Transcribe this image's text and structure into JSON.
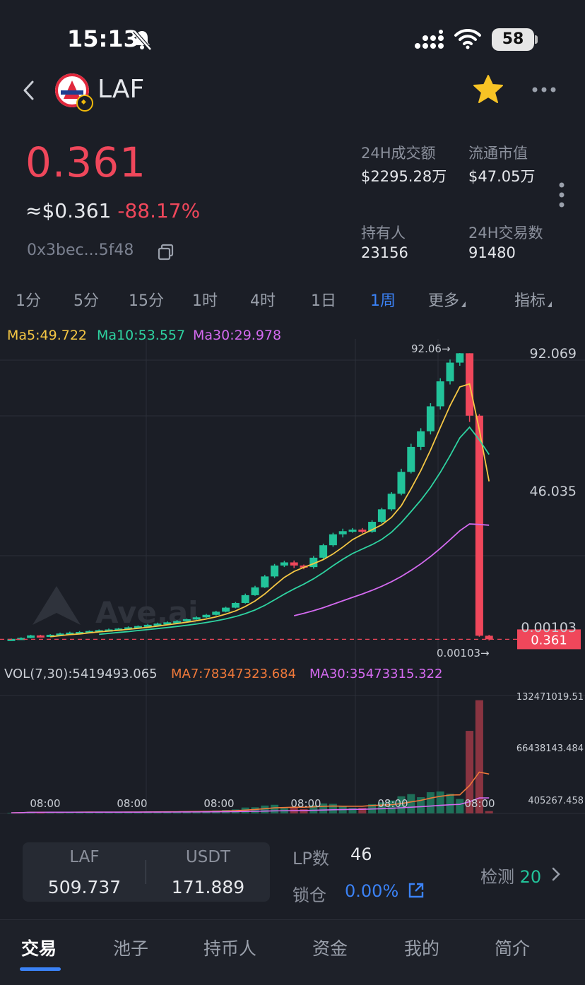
{
  "status_bar": {
    "time": "15:13",
    "battery": "58"
  },
  "header": {
    "token_name": "LAF"
  },
  "price": {
    "value": "0.361",
    "usd": "≈$0.361",
    "change": "-88.17%",
    "address": "0x3bec...5f48"
  },
  "stats": [
    {
      "label": "24H成交额",
      "value": "$2295.28万"
    },
    {
      "label": "流通市值",
      "value": "$47.05万"
    },
    {
      "label": "持有人",
      "value": "23156"
    },
    {
      "label": "24H交易数",
      "value": "91480"
    }
  ],
  "timeframes": [
    "1分",
    "5分",
    "15分",
    "1时",
    "4时",
    "1日",
    "1周",
    "更多",
    "指标"
  ],
  "active_timeframe": "1周",
  "ma_labels": {
    "ma5": "Ma5:49.722",
    "ma10": "Ma10:53.557",
    "ma30": "Ma30:29.978"
  },
  "vol_labels": {
    "vol": "VOL(7,30):5419493.065",
    "ma7": "MA7:78347323.684",
    "ma30": "MA30:35473315.322"
  },
  "chart_data": {
    "type": "candlestick",
    "price_axis_labels": [
      "92.069",
      "46.035",
      "0.00103"
    ],
    "current_price_tag": "0.361",
    "high_marker": "92.06→",
    "low_marker": "0.00103→",
    "watermark": "Ave.ai",
    "candles": [
      [
        0.3,
        0.5,
        0.2,
        0.6
      ],
      [
        0.5,
        0.8,
        0.4,
        1.0
      ],
      [
        0.8,
        1.6,
        0.7,
        1.8
      ],
      [
        1.6,
        1.2,
        1.0,
        1.8
      ],
      [
        1.2,
        1.8,
        1.1,
        2.0
      ],
      [
        1.8,
        2.2,
        1.7,
        2.5
      ],
      [
        2.2,
        2.5,
        2.0,
        2.8
      ],
      [
        2.5,
        2.7,
        2.3,
        3.0
      ],
      [
        2.7,
        3.0,
        2.5,
        3.2
      ],
      [
        3.0,
        3.3,
        2.8,
        3.5
      ],
      [
        3.3,
        3.5,
        3.1,
        3.8
      ],
      [
        3.5,
        3.8,
        3.3,
        4.0
      ],
      [
        3.8,
        4.2,
        3.6,
        4.5
      ],
      [
        4.2,
        4.6,
        4.0,
        4.8
      ],
      [
        4.6,
        5.0,
        4.4,
        5.3
      ],
      [
        5.0,
        5.4,
        4.8,
        5.7
      ],
      [
        5.4,
        5.8,
        5.2,
        6.1
      ],
      [
        5.8,
        6.2,
        5.6,
        6.5
      ],
      [
        6.2,
        6.8,
        6.0,
        7.0
      ],
      [
        6.8,
        7.4,
        6.6,
        7.7
      ],
      [
        7.4,
        8.2,
        7.2,
        8.5
      ],
      [
        8.2,
        9.2,
        8.0,
        9.5
      ],
      [
        9.2,
        10.5,
        9.0,
        10.8
      ],
      [
        10.5,
        12.0,
        10.3,
        12.3
      ],
      [
        12.0,
        14.5,
        11.8,
        15.0
      ],
      [
        14.5,
        17.0,
        14.3,
        17.5
      ],
      [
        17.0,
        20.5,
        16.8,
        21.0
      ],
      [
        20.5,
        24.0,
        20.0,
        24.5
      ],
      [
        24.0,
        25.0,
        23.5,
        25.5
      ],
      [
        25.0,
        24.0,
        23.2,
        25.6
      ],
      [
        24.0,
        23.5,
        22.8,
        24.3
      ],
      [
        23.5,
        26.5,
        23.0,
        27.0
      ],
      [
        26.5,
        30.5,
        26.0,
        31.0
      ],
      [
        30.5,
        34.0,
        30.0,
        34.5
      ],
      [
        34.0,
        35.0,
        33.0,
        35.8
      ],
      [
        35.0,
        35.5,
        34.5,
        36.0
      ],
      [
        35.5,
        34.8,
        34.3,
        36.0
      ],
      [
        34.8,
        38.0,
        34.5,
        38.5
      ],
      [
        38.0,
        42.0,
        37.5,
        42.5
      ],
      [
        42.0,
        47.0,
        41.5,
        47.5
      ],
      [
        47.0,
        54.0,
        46.5,
        55.0
      ],
      [
        54.0,
        62.0,
        53.5,
        63.0
      ],
      [
        62.0,
        67.0,
        61.0,
        68.0
      ],
      [
        67.0,
        75.0,
        66.0,
        76.0
      ],
      [
        75.0,
        83.0,
        74.0,
        84.0
      ],
      [
        83.0,
        89.0,
        82.0,
        90.0
      ],
      [
        89.0,
        92.0,
        88.0,
        92.06
      ],
      [
        92.0,
        72.0,
        70.0,
        92.0
      ],
      [
        72.0,
        1.5,
        1.2,
        72.5
      ],
      [
        1.5,
        0.361,
        0.00103,
        1.8
      ]
    ],
    "volume_axis_labels": [
      "132471019.51",
      "66438143.484",
      "405267.458"
    ],
    "time_labels": [
      "08:00",
      "08:00",
      "08:00",
      "08:00",
      "08:00",
      "08:00"
    ]
  },
  "pool": {
    "token_a_label": "LAF",
    "token_a_value": "509.737",
    "token_b_label": "USDT",
    "token_b_value": "171.889",
    "lp_label": "LP数",
    "lp_value": "46",
    "lock_label": "锁仓",
    "lock_value": "0.00%",
    "check_label": "检测",
    "check_value": "20"
  },
  "bottom_tabs": [
    "交易",
    "池子",
    "持币人",
    "资金",
    "我的",
    "简介"
  ],
  "colors": {
    "up": "#22c39a",
    "down": "#f0475b",
    "ma5": "#f5c744",
    "ma10": "#2ed3a1",
    "ma30": "#d46af0",
    "accent": "#3b82f6"
  }
}
